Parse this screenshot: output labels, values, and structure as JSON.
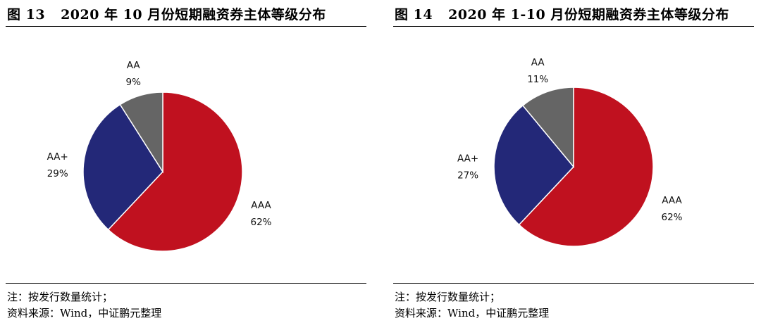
{
  "colors": {
    "AAA": "#c0111f",
    "AA+": "#232878",
    "AA": "#656565",
    "edge": "#ffffff"
  },
  "chart_data": [
    {
      "type": "pie",
      "figure_number": "图 13",
      "title": "2020 年 10 月份短期融资券主体等级分布",
      "slices": [
        {
          "label": "AAA",
          "value": 62,
          "display": "62%"
        },
        {
          "label": "AA+",
          "value": 29,
          "display": "29%"
        },
        {
          "label": "AA",
          "value": 9,
          "display": "9%"
        }
      ],
      "start": "12 o'clock, clockwise",
      "notes": [
        "注：按发行数量统计；",
        "资料来源：Wind，中证鹏元整理"
      ]
    },
    {
      "type": "pie",
      "figure_number": "图 14",
      "title": "2020 年 1-10 月份短期融资券主体等级分布",
      "slices": [
        {
          "label": "AAA",
          "value": 62,
          "display": "62%"
        },
        {
          "label": "AA+",
          "value": 27,
          "display": "27%"
        },
        {
          "label": "AA",
          "value": 11,
          "display": "11%"
        }
      ],
      "start": "12 o'clock, clockwise",
      "notes": [
        "注：按发行数量统计；",
        "资料来源：Wind，中证鹏元整理"
      ]
    }
  ]
}
